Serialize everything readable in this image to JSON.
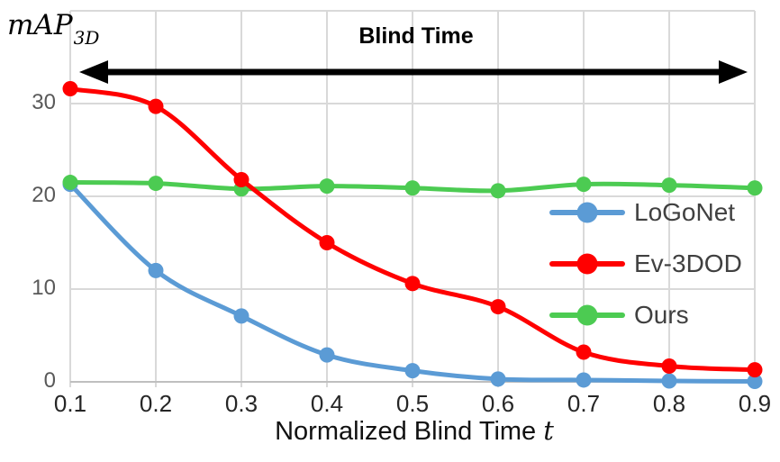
{
  "annotation": {
    "label": "Blind Time",
    "arrow": "double-headed-horizontal",
    "arrow_color": "#000000"
  },
  "y_axis": {
    "title_main": "mAP",
    "title_sub": "3D",
    "tick_labels": [
      "0",
      "10",
      "20",
      "30"
    ],
    "tick_values": [
      0,
      10,
      20,
      30
    ]
  },
  "x_axis": {
    "label_text": "Normalized Blind Time",
    "label_var": "t",
    "tick_labels": [
      "0.1",
      "0.2",
      "0.3",
      "0.4",
      "0.5",
      "0.6",
      "0.7",
      "0.8",
      "0.9"
    ]
  },
  "chart_data": {
    "type": "line",
    "title": "Blind Time",
    "xlabel": "Normalized Blind Time t",
    "ylabel": "mAP_3D",
    "x": [
      0.1,
      0.2,
      0.3,
      0.4,
      0.5,
      0.6,
      0.7,
      0.8,
      0.9
    ],
    "xlim": [
      0.1,
      0.9
    ],
    "ylim": [
      0,
      40
    ],
    "grid": true,
    "gridline_step": 10,
    "grid_color": "#D9D9D9",
    "axis_color": "#BFBFBF",
    "legend_position": "middle-right",
    "series": [
      {
        "name": "LoGoNet",
        "color": "#5B9BD5",
        "values": [
          21.3,
          12.0,
          7.1,
          2.9,
          1.2,
          0.3,
          0.2,
          0.1,
          0.05
        ]
      },
      {
        "name": "Ours",
        "color": "#4CCB52",
        "values": [
          21.5,
          21.4,
          20.8,
          21.1,
          20.9,
          20.6,
          21.3,
          21.2,
          20.9
        ]
      },
      {
        "name": "Ev-3DOD",
        "color": "#FF0000",
        "values": [
          31.6,
          29.7,
          21.8,
          15.0,
          10.6,
          8.1,
          3.2,
          1.7,
          1.3
        ]
      }
    ],
    "legend_order": [
      "LoGoNet",
      "Ev-3DOD",
      "Ours"
    ]
  }
}
